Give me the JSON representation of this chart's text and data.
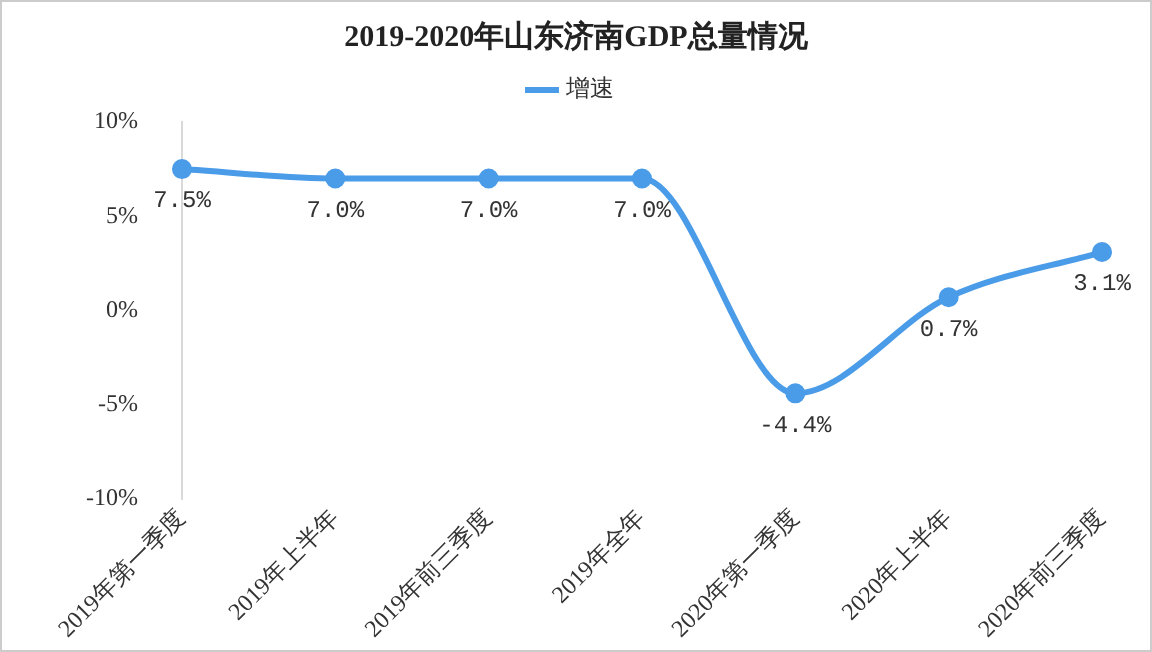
{
  "chart_data": {
    "type": "line",
    "title": "2019-2020年山东济南GDP总量情况",
    "categories": [
      "2019年第一季度",
      "2019年上半年",
      "2019年前三季度",
      "2019年全年",
      "2020年第一季度",
      "2020年上半年",
      "2020年前三季度"
    ],
    "series": [
      {
        "name": "增速",
        "color": "#4a9be8",
        "values": [
          7.5,
          7.0,
          7.0,
          7.0,
          -4.4,
          0.7,
          3.1
        ],
        "value_labels": [
          "7.5%",
          "7.0%",
          "7.0%",
          "7.0%",
          "-4.4%",
          "0.7%",
          "3.1%"
        ]
      }
    ],
    "ylim": [
      -10,
      10
    ],
    "yticks": [
      {
        "value": -10,
        "label": "-10%"
      },
      {
        "value": -5,
        "label": "-5%"
      },
      {
        "value": 0,
        "label": "0%"
      },
      {
        "value": 5,
        "label": "5%"
      },
      {
        "value": 10,
        "label": "10%"
      }
    ],
    "grid": false,
    "legend": "top",
    "marker": "circle",
    "line_style": "solid"
  }
}
